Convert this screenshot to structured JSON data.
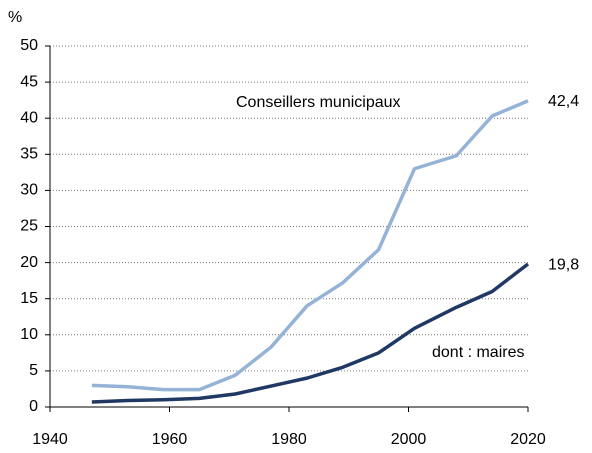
{
  "chart_data": {
    "type": "line",
    "y_label": "%",
    "x": [
      1947,
      1953,
      1959,
      1965,
      1971,
      1977,
      1983,
      1989,
      1995,
      2001,
      2008,
      2014,
      2020
    ],
    "series": [
      {
        "name": "Conseillers municipaux",
        "color": "#95b3d7",
        "values": [
          3.0,
          2.8,
          2.4,
          2.4,
          4.4,
          8.3,
          14.0,
          17.2,
          21.8,
          33.0,
          34.8,
          40.3,
          42.4
        ],
        "value_labels": [
          null,
          null,
          null,
          null,
          null,
          null,
          null,
          null,
          null,
          null,
          null,
          null,
          "42,4"
        ]
      },
      {
        "name": "dont : maires",
        "color": "#1f3864",
        "values": [
          0.7,
          0.9,
          1.0,
          1.2,
          1.8,
          2.9,
          4.0,
          5.5,
          7.5,
          10.9,
          13.8,
          16.0,
          19.8
        ],
        "value_labels": [
          null,
          null,
          null,
          null,
          null,
          null,
          null,
          null,
          null,
          null,
          null,
          null,
          "19,8"
        ]
      }
    ],
    "xlim": [
      1940,
      2020
    ],
    "xticks": [
      1940,
      1960,
      1980,
      2000,
      2020
    ],
    "ylim": [
      0,
      50
    ],
    "yticks": [
      0,
      5,
      10,
      15,
      20,
      25,
      30,
      35,
      40,
      45,
      50
    ],
    "grid": true
  }
}
